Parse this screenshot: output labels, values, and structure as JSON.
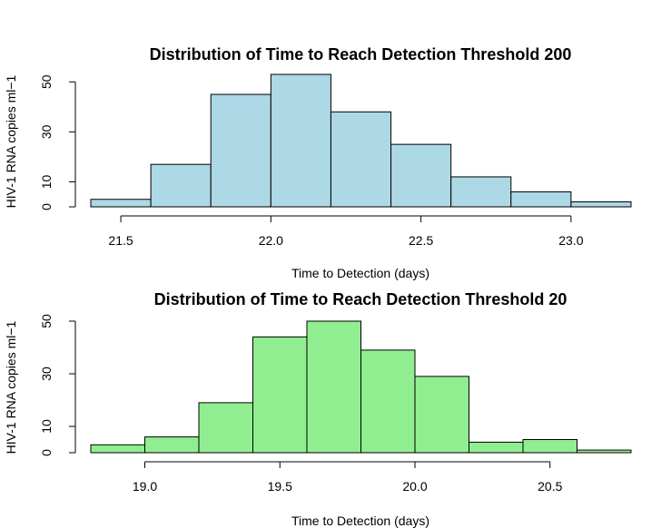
{
  "chart_data": [
    {
      "type": "bar",
      "title": "Distribution of Time to Reach Detection Threshold 200",
      "xlabel": "Time to Detection (days)",
      "ylabel": "HIV-1 RNA copies ml−1",
      "bar_color": "#ADD8E6",
      "bin_edges": [
        21.4,
        21.6,
        21.8,
        22.0,
        22.2,
        22.4,
        22.6,
        22.8,
        23.0,
        23.2
      ],
      "values": [
        3,
        17,
        45,
        53,
        38,
        25,
        12,
        6,
        2
      ],
      "xlim": [
        21.4,
        23.2
      ],
      "ylim": [
        0,
        53
      ],
      "x_ticks": [
        21.5,
        22.0,
        22.5,
        23.0
      ],
      "x_tick_labels": [
        "21.5",
        "22.0",
        "22.5",
        "23.0"
      ],
      "y_ticks": [
        0,
        10,
        30,
        50
      ],
      "y_tick_labels": [
        "0",
        "10",
        "30",
        "50"
      ]
    },
    {
      "type": "bar",
      "title": "Distribution of Time to Reach Detection Threshold 20",
      "xlabel": "Time to Detection (days)",
      "ylabel": "HIV-1 RNA copies ml−1",
      "bar_color": "#90EE90",
      "bin_edges": [
        18.8,
        19.0,
        19.2,
        19.4,
        19.6,
        19.8,
        20.0,
        20.2,
        20.4,
        20.6,
        20.8
      ],
      "values": [
        3,
        6,
        19,
        44,
        50,
        39,
        29,
        4,
        5,
        1
      ],
      "xlim": [
        18.8,
        20.8
      ],
      "ylim": [
        0,
        50
      ],
      "x_ticks": [
        19.0,
        19.5,
        20.0,
        20.5
      ],
      "x_tick_labels": [
        "19.0",
        "19.5",
        "20.0",
        "20.5"
      ],
      "y_ticks": [
        0,
        10,
        30,
        50
      ],
      "y_tick_labels": [
        "0",
        "10",
        "30",
        "50"
      ]
    }
  ]
}
